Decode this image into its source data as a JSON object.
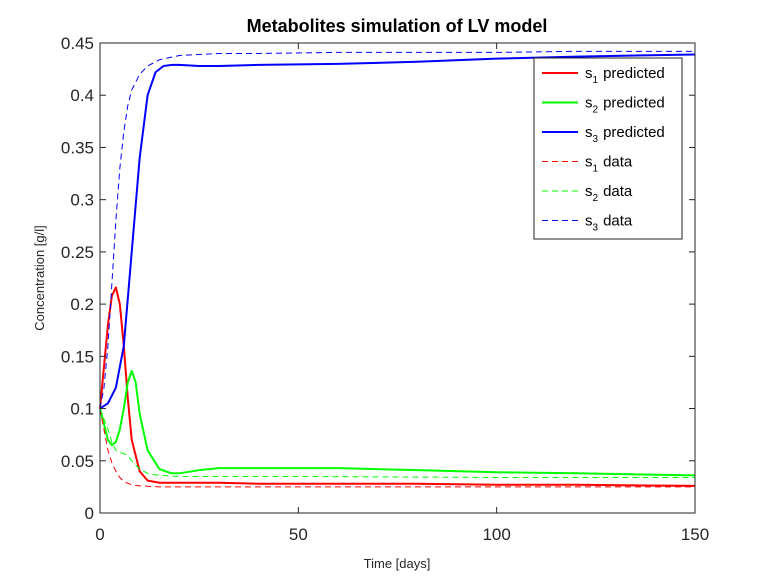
{
  "chart_data": {
    "type": "line",
    "title": "Metabolites simulation of LV model",
    "xlabel": "Time [days]",
    "ylabel": "Concentration [g/l]",
    "xlim": [
      0,
      150
    ],
    "ylim": [
      0,
      0.45
    ],
    "xticks": [
      0,
      50,
      100,
      150
    ],
    "xtick_labels": [
      "0",
      "50",
      "100",
      "150"
    ],
    "yticks": [
      0,
      0.05,
      0.1,
      0.15,
      0.2,
      0.25,
      0.3,
      0.35,
      0.4,
      0.45
    ],
    "ytick_labels": [
      "0",
      "0.05",
      "0.1",
      "0.15",
      "0.2",
      "0.25",
      "0.3",
      "0.35",
      "0.4",
      "0.45"
    ],
    "grid": false,
    "legend_position": "top-right",
    "series": [
      {
        "name": "s1 predicted",
        "label_base": "s",
        "label_sub": "1",
        "label_suffix": "predicted",
        "color": "#ff0000",
        "style": "solid",
        "x": [
          0,
          1,
          2,
          3,
          4,
          5,
          6,
          7,
          8,
          10,
          12,
          15,
          20,
          25,
          30,
          40,
          60,
          80,
          100,
          120,
          150
        ],
        "y": [
          0.1,
          0.14,
          0.18,
          0.208,
          0.216,
          0.2,
          0.16,
          0.11,
          0.07,
          0.04,
          0.031,
          0.029,
          0.029,
          0.029,
          0.029,
          0.028,
          0.028,
          0.028,
          0.027,
          0.027,
          0.026
        ]
      },
      {
        "name": "s2 predicted",
        "label_base": "s",
        "label_sub": "2",
        "label_suffix": "predicted",
        "color": "#00ff00",
        "style": "solid",
        "x": [
          0,
          1,
          2,
          3,
          4,
          5,
          6,
          7,
          8,
          9,
          10,
          12,
          15,
          18,
          20,
          25,
          30,
          40,
          60,
          80,
          100,
          120,
          150
        ],
        "y": [
          0.1,
          0.085,
          0.07,
          0.065,
          0.068,
          0.08,
          0.1,
          0.125,
          0.136,
          0.125,
          0.095,
          0.06,
          0.042,
          0.038,
          0.038,
          0.041,
          0.043,
          0.043,
          0.043,
          0.041,
          0.039,
          0.038,
          0.036
        ]
      },
      {
        "name": "s3 predicted",
        "label_base": "s",
        "label_sub": "3",
        "label_suffix": "predicted",
        "color": "#0000ff",
        "style": "solid",
        "x": [
          0,
          2,
          4,
          6,
          8,
          10,
          12,
          14,
          16,
          18,
          20,
          25,
          30,
          40,
          60,
          80,
          100,
          120,
          150
        ],
        "y": [
          0.1,
          0.105,
          0.12,
          0.16,
          0.25,
          0.34,
          0.4,
          0.422,
          0.428,
          0.429,
          0.429,
          0.428,
          0.428,
          0.429,
          0.43,
          0.432,
          0.435,
          0.437,
          0.439
        ]
      },
      {
        "name": "s1 data",
        "label_base": "s",
        "label_sub": "1",
        "label_suffix": "data",
        "color": "#ff0000",
        "style": "dashed",
        "x": [
          0,
          1,
          2,
          3,
          4,
          5,
          6,
          8,
          10,
          15,
          20,
          30,
          50,
          100,
          150
        ],
        "y": [
          0.1,
          0.08,
          0.06,
          0.048,
          0.04,
          0.034,
          0.03,
          0.027,
          0.026,
          0.025,
          0.025,
          0.025,
          0.025,
          0.025,
          0.025
        ]
      },
      {
        "name": "s2 data",
        "label_base": "s",
        "label_sub": "2",
        "label_suffix": "data",
        "color": "#00ff00",
        "style": "dashed",
        "x": [
          0,
          1,
          2,
          3,
          4,
          5,
          6,
          7,
          8,
          10,
          12,
          15,
          20,
          30,
          50,
          100,
          150
        ],
        "y": [
          0.1,
          0.09,
          0.08,
          0.068,
          0.06,
          0.058,
          0.057,
          0.055,
          0.05,
          0.042,
          0.038,
          0.036,
          0.035,
          0.035,
          0.035,
          0.034,
          0.034
        ]
      },
      {
        "name": "s3 data",
        "label_base": "s",
        "label_sub": "3",
        "label_suffix": "data",
        "color": "#0000ff",
        "style": "dashed",
        "x": [
          0,
          1,
          2,
          3,
          4,
          5,
          6,
          7,
          8,
          10,
          12,
          15,
          20,
          25,
          30,
          40,
          60,
          80,
          100,
          120,
          150
        ],
        "y": [
          0.1,
          0.12,
          0.16,
          0.22,
          0.28,
          0.33,
          0.365,
          0.39,
          0.405,
          0.42,
          0.428,
          0.434,
          0.438,
          0.439,
          0.44,
          0.44,
          0.441,
          0.441,
          0.441,
          0.442,
          0.442
        ]
      }
    ]
  }
}
